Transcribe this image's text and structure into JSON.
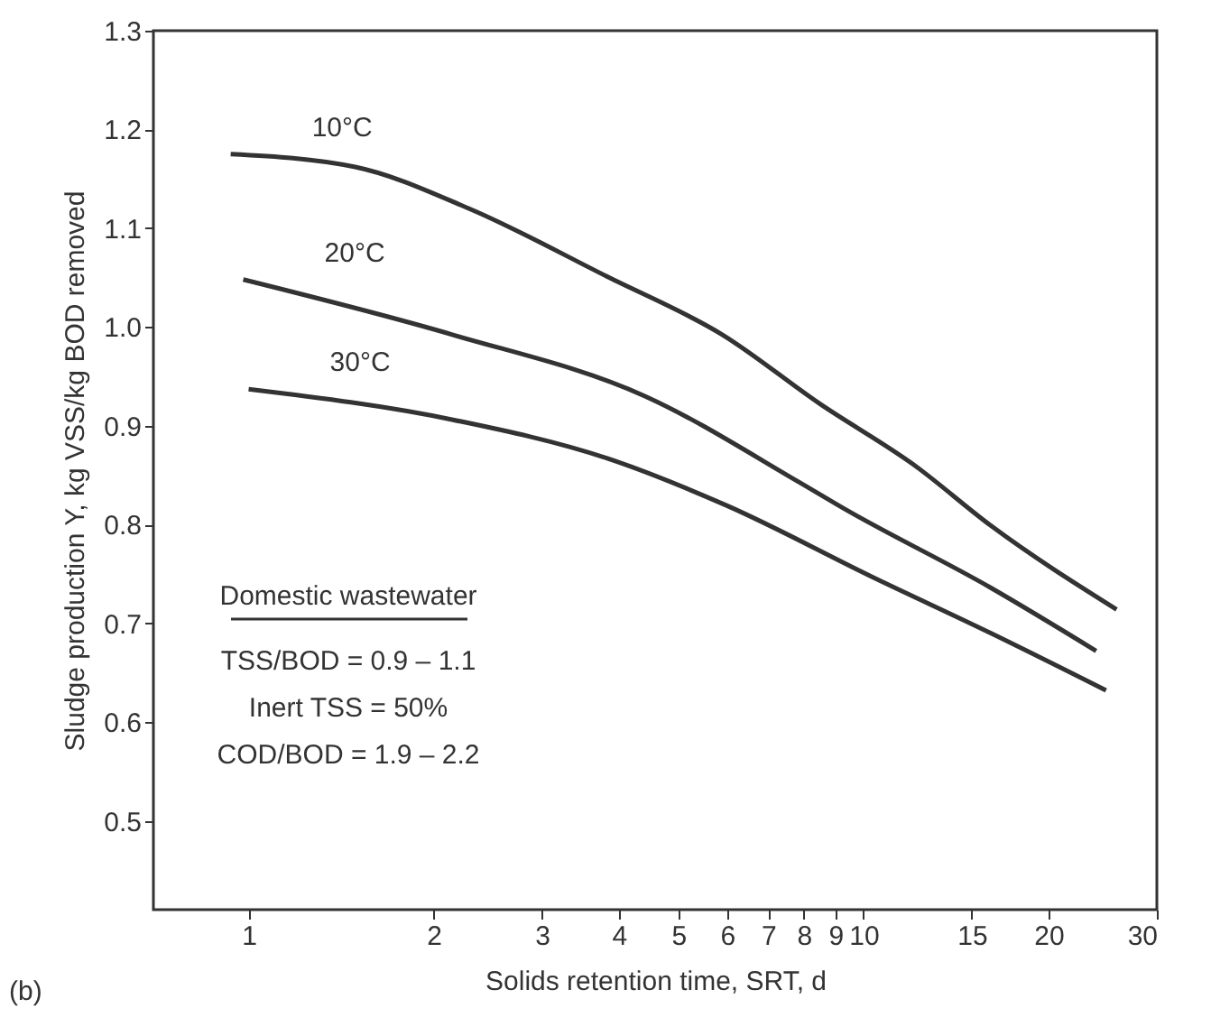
{
  "chart_data": {
    "type": "line",
    "xlabel": "Solids retention time, SRT, d",
    "ylabel": "Sludge production Y, kg VSS/kg BOD removed",
    "log": "x",
    "xlim": [
      0.7,
      30
    ],
    "xticks": [
      1,
      2,
      3,
      4,
      5,
      6,
      7,
      8,
      9,
      10,
      15,
      20,
      30
    ],
    "ylim": [
      0.41,
      1.3
    ],
    "yticks": [
      0.5,
      0.6,
      0.7,
      0.8,
      0.9,
      {
        "value": 1,
        "label": "1.0"
      },
      1.1,
      1.2,
      1.3
    ],
    "grid": false,
    "legend": false,
    "marker": "none",
    "line_style": "solid",
    "series": [
      {
        "name": "10°C",
        "color": "#333333",
        "x": [
          0.935,
          1.49,
          2.28,
          3.83,
          5.9,
          8.5,
          12.1,
          16.1,
          25.8
        ],
        "values": [
          1.175,
          1.162,
          1.12,
          1.051,
          0.992,
          0.922,
          0.86,
          0.799,
          0.714
        ]
      },
      {
        "name": "20°C",
        "color": "#333333",
        "x": [
          0.98,
          2.15,
          4.41,
          7.85,
          9.3,
          16.1,
          23.9
        ],
        "values": [
          1.048,
          0.992,
          0.93,
          0.843,
          0.816,
          0.736,
          0.672
        ]
      },
      {
        "name": "30°C",
        "color": "#333333",
        "x": [
          1.0,
          2.15,
          3.83,
          6.0,
          10.4,
          16.1,
          24.8
        ],
        "values": [
          0.937,
          0.906,
          0.867,
          0.819,
          0.746,
          0.69,
          0.632
        ]
      }
    ],
    "annotations": [
      "Domestic wastewater",
      "TSS/BOD = 0.9 – 1.1",
      "Inert TSS = 50%",
      "COD/BOD = 1.9 – 2.2",
      "(b)"
    ]
  }
}
